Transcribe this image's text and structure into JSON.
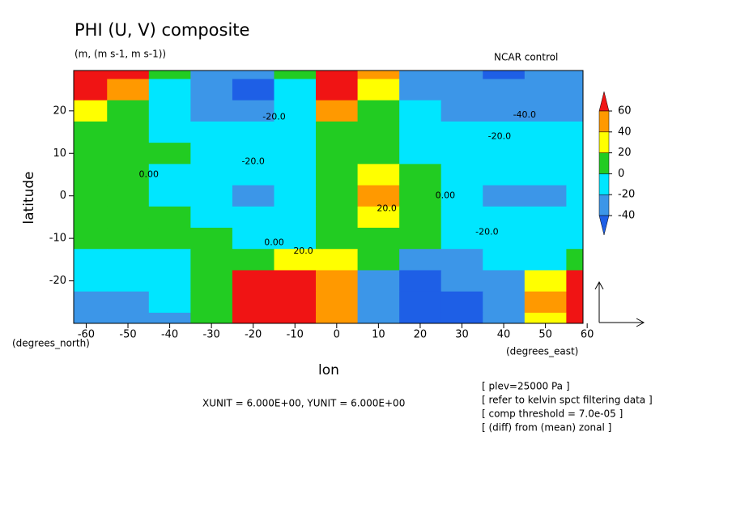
{
  "chart_data": {
    "type": "contour",
    "title": "PHI (U, V) composite",
    "subtitle": "(m, (m s-1, m s-1))",
    "label_top_right": "NCAR control",
    "xlabel": "lon",
    "xunit": "(degrees_east)",
    "ylabel": "latitude",
    "yunit": "(degrees_north)",
    "xlim": [
      -63,
      59
    ],
    "ylim": [
      -30,
      29.5
    ],
    "xticks": [
      -60,
      -50,
      -40,
      -30,
      -20,
      -10,
      0,
      10,
      20,
      30,
      40,
      50,
      60
    ],
    "yticks": [
      -20,
      -10,
      0,
      10,
      20
    ],
    "x": [
      -60,
      -50,
      -40,
      -30,
      -20,
      -10,
      0,
      10,
      20,
      30,
      40,
      50,
      60
    ],
    "y": [
      30,
      25,
      20,
      15,
      10,
      5,
      0,
      -5,
      -10,
      -15,
      -20,
      -25,
      -30
    ],
    "z": [
      [
        75,
        70,
        5,
        -35,
        -40,
        10,
        75,
        40,
        -30,
        -40,
        -45,
        -35,
        -30
      ],
      [
        70,
        55,
        -5,
        -35,
        -45,
        -5,
        80,
        35,
        -25,
        -35,
        -40,
        -35,
        -30
      ],
      [
        30,
        15,
        -15,
        -30,
        -35,
        -10,
        45,
        15,
        -15,
        -30,
        -35,
        -30,
        -25
      ],
      [
        10,
        5,
        -10,
        -20,
        -20,
        -5,
        15,
        5,
        -10,
        -15,
        -20,
        -20,
        -15
      ],
      [
        5,
        5,
        0,
        -10,
        -10,
        -5,
        5,
        5,
        -5,
        -10,
        -15,
        -15,
        -10
      ],
      [
        5,
        5,
        -5,
        -15,
        -15,
        -10,
        10,
        20,
        0,
        -10,
        -20,
        -20,
        -15
      ],
      [
        5,
        5,
        -10,
        -20,
        -25,
        -15,
        15,
        45,
        5,
        -10,
        -25,
        -25,
        -15
      ],
      [
        5,
        5,
        0,
        -10,
        -15,
        -10,
        10,
        25,
        5,
        -10,
        -15,
        -15,
        -10
      ],
      [
        5,
        5,
        5,
        0,
        -5,
        -5,
        5,
        5,
        0,
        -10,
        -15,
        -15,
        -5
      ],
      [
        -5,
        -5,
        -5,
        5,
        15,
        20,
        25,
        10,
        -25,
        -30,
        -20,
        -5,
        15
      ],
      [
        -15,
        -15,
        -15,
        15,
        70,
        80,
        45,
        -30,
        -45,
        -40,
        -25,
        20,
        65
      ],
      [
        -25,
        -25,
        -20,
        10,
        80,
        85,
        50,
        -35,
        -50,
        -45,
        -30,
        40,
        70
      ],
      [
        -30,
        -30,
        -25,
        0,
        70,
        80,
        50,
        -30,
        -45,
        -45,
        -35,
        30,
        65
      ]
    ],
    "levels": [
      -40,
      -20,
      0,
      20,
      40,
      60
    ],
    "colors": [
      "#1e5fe6",
      "#3c96e8",
      "#00e6ff",
      "#22cc22",
      "#ffff00",
      "#ff9900",
      "#f01414"
    ],
    "contour_labels": [
      {
        "x": -15,
        "y": 18.5,
        "label": "-20.0"
      },
      {
        "x": -20,
        "y": 8,
        "label": "-20.0"
      },
      {
        "x": -45,
        "y": 5,
        "label": "0.00"
      },
      {
        "x": -15,
        "y": -11,
        "label": "0.00"
      },
      {
        "x": -8,
        "y": -13,
        "label": "20.0"
      },
      {
        "x": 12,
        "y": -3,
        "label": "20.0"
      },
      {
        "x": 26,
        "y": 0,
        "label": "0.00"
      },
      {
        "x": 36,
        "y": -8.5,
        "label": "-20.0"
      },
      {
        "x": 39,
        "y": 14,
        "label": "-20.0"
      },
      {
        "x": 45,
        "y": 19,
        "label": "-40.0"
      }
    ],
    "annotation": "XUNIT = 6.000E+00, YUNIT = 6.000E+00",
    "notes": [
      "[ plev=25000 Pa ]",
      "[ refer to kelvin spct filtering data ]",
      "[ comp threshold = 7.0e-05 ]",
      "[ (diff) from (mean) zonal ]"
    ]
  }
}
